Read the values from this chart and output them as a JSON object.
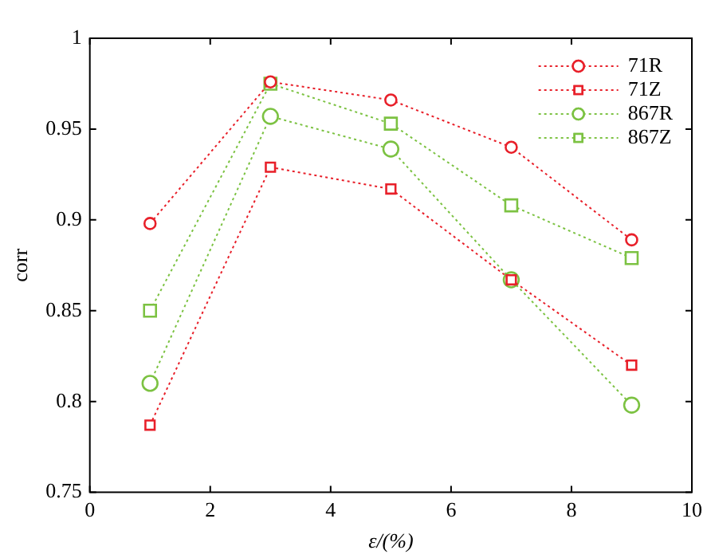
{
  "chart_data": {
    "type": "line",
    "xlabel": "ε/(%)",
    "ylabel": "corr",
    "x": [
      1,
      3,
      5,
      7,
      9
    ],
    "xlim": [
      0,
      10
    ],
    "xticks": [
      0,
      2,
      4,
      6,
      8,
      10
    ],
    "ylim": [
      0.75,
      1
    ],
    "yticks": [
      0.75,
      0.8,
      0.85,
      0.9,
      0.95,
      1
    ],
    "grid": false,
    "legend": "top right",
    "line_style": "dotted",
    "series": [
      {
        "name": "71R",
        "color": "#e8202a",
        "marker": "circle",
        "values": [
          0.898,
          0.976,
          0.966,
          0.94,
          0.889
        ]
      },
      {
        "name": "71Z",
        "color": "#e8202a",
        "marker": "square",
        "values": [
          0.787,
          0.929,
          0.917,
          0.867,
          0.82
        ]
      },
      {
        "name": "867R",
        "color": "#7cc242",
        "marker": "circle",
        "values": [
          0.81,
          0.957,
          0.939,
          0.867,
          0.798
        ]
      },
      {
        "name": "867Z",
        "color": "#7cc242",
        "marker": "square",
        "values": [
          0.85,
          0.975,
          0.953,
          0.908,
          0.879
        ]
      }
    ]
  }
}
